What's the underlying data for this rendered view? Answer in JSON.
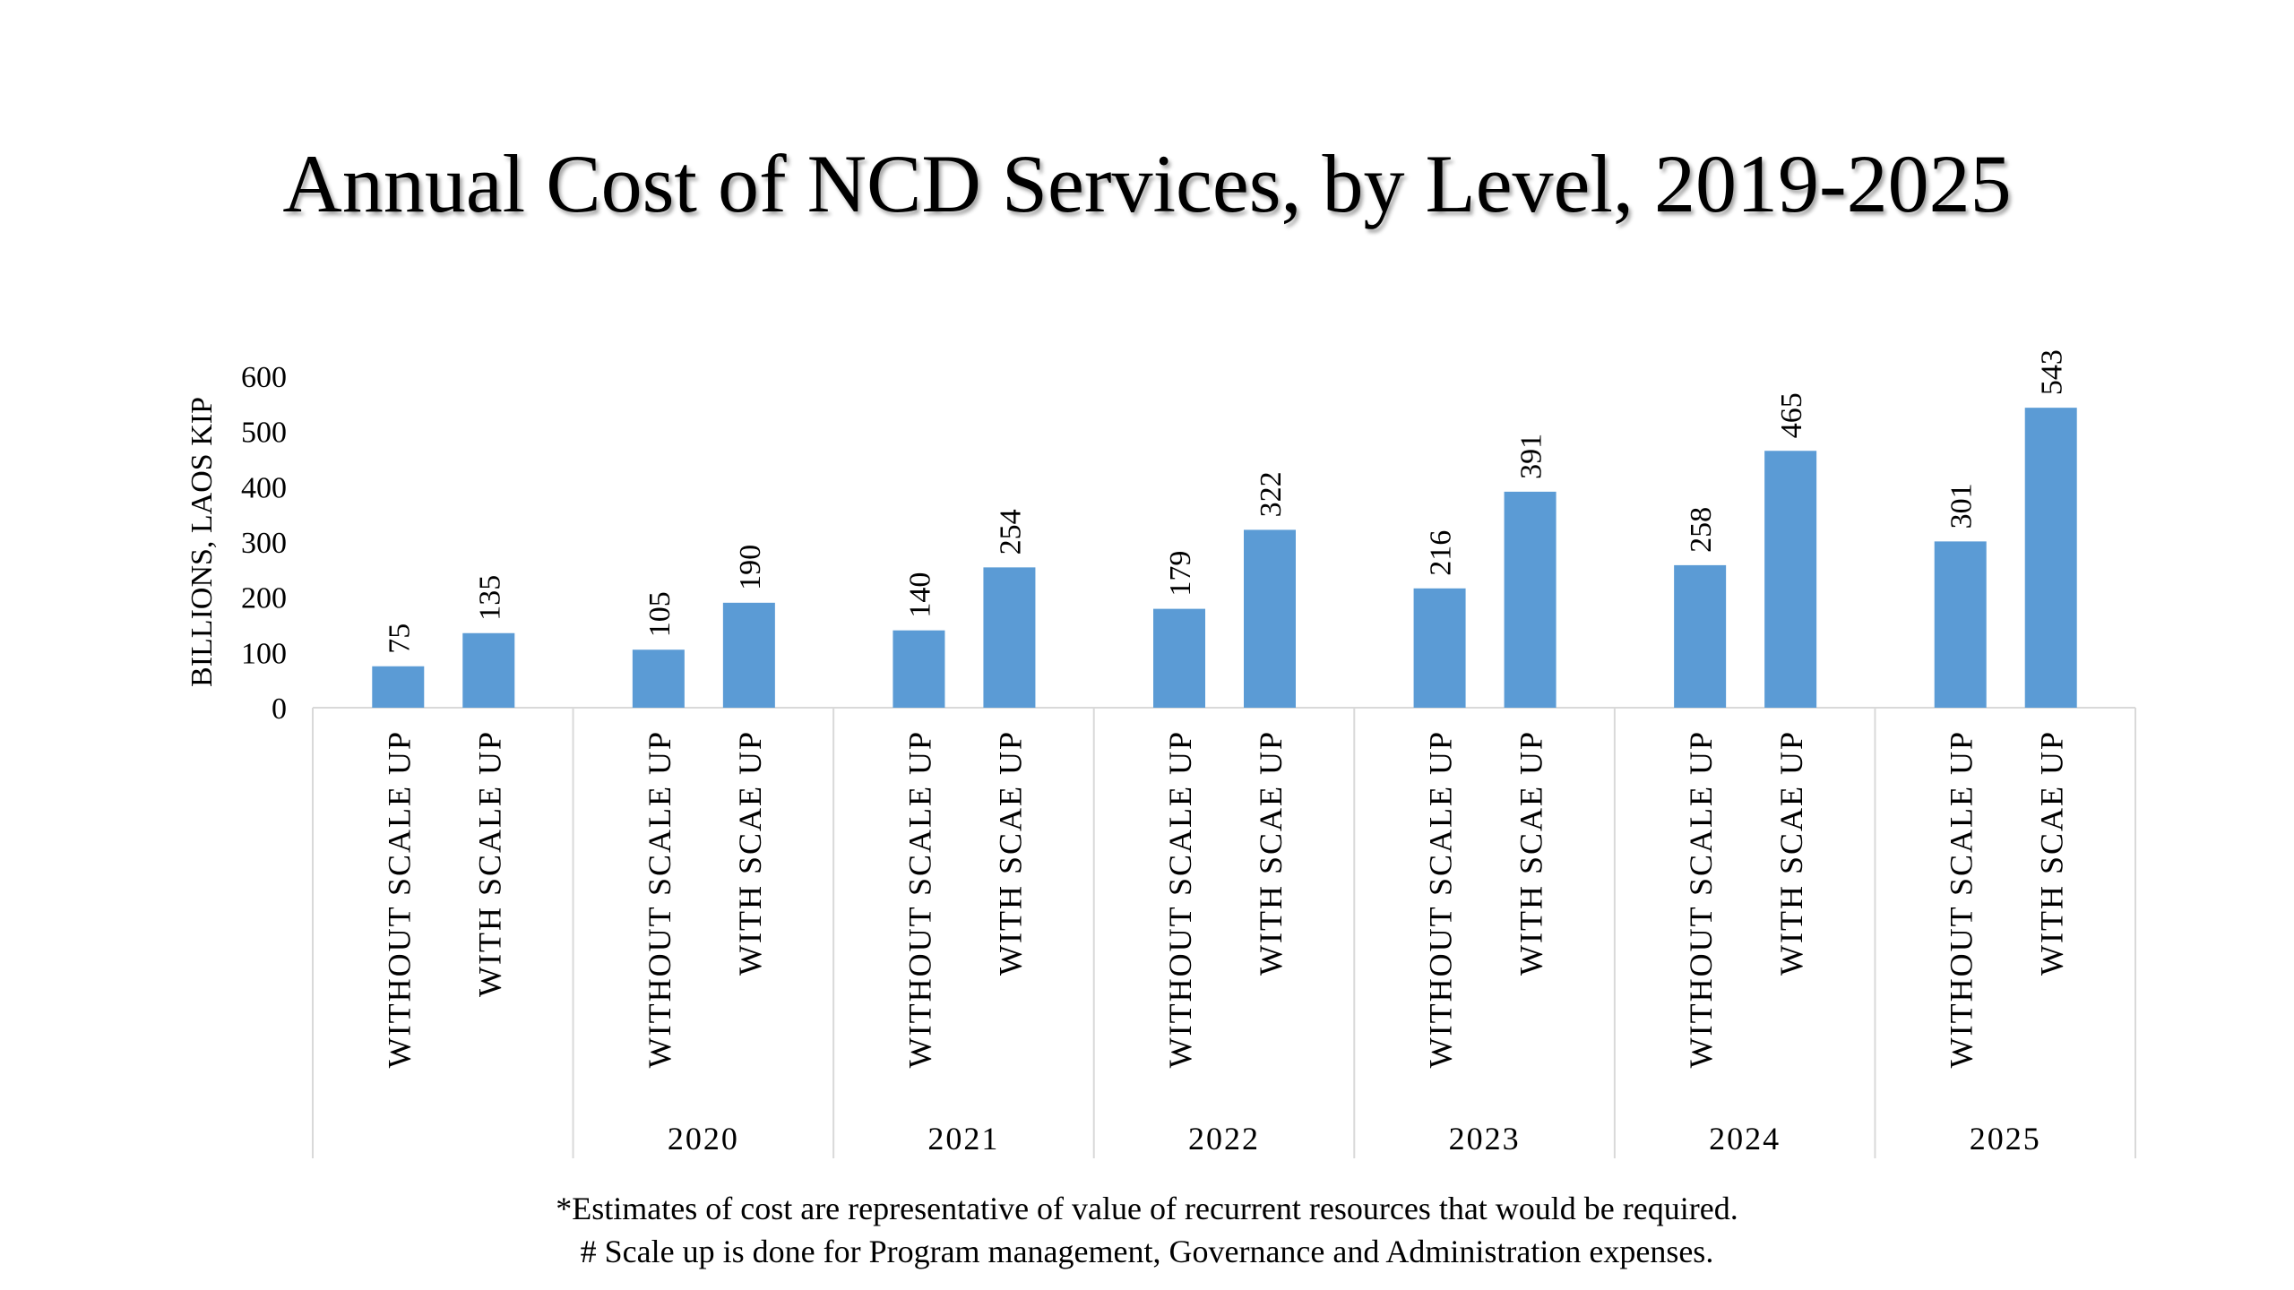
{
  "chart_data": {
    "type": "bar",
    "title": "Annual Cost of NCD Services, by Level, 2019-2025",
    "ylabel": "BILLIONS, LAOS KIP",
    "ylim": [
      0,
      600
    ],
    "yticks": [
      "0",
      "100",
      "200",
      "300",
      "400",
      "500",
      "600"
    ],
    "groups": [
      {
        "label": "",
        "bars": [
          {
            "label": "WITHOUT SCALE UP",
            "value": 75
          },
          {
            "label": "WITH SCALE UP",
            "value": 135
          }
        ]
      },
      {
        "label": "2020",
        "bars": [
          {
            "label": "WITHOUT SCALE UP",
            "value": 105
          },
          {
            "label": "WITH SCAE UP",
            "value": 190
          }
        ]
      },
      {
        "label": "2021",
        "bars": [
          {
            "label": "WITHOUT SCALE UP",
            "value": 140
          },
          {
            "label": "WITH SCAE UP",
            "value": 254
          }
        ]
      },
      {
        "label": "2022",
        "bars": [
          {
            "label": "WITHOUT SCALE UP",
            "value": 179
          },
          {
            "label": "WITH SCAE UP",
            "value": 322
          }
        ]
      },
      {
        "label": "2023",
        "bars": [
          {
            "label": "WITHOUT SCALE UP",
            "value": 216
          },
          {
            "label": "WITH SCAE UP",
            "value": 391
          }
        ]
      },
      {
        "label": "2024",
        "bars": [
          {
            "label": "WITHOUT SCALE UP",
            "value": 258
          },
          {
            "label": "WITH SCAE UP",
            "value": 465
          }
        ]
      },
      {
        "label": "2025",
        "bars": [
          {
            "label": "WITHOUT SCALE UP",
            "value": 301
          },
          {
            "label": "WITH SCAE UP",
            "value": 543
          }
        ]
      }
    ],
    "bar_color": "#5b9bd5",
    "gridlines": false,
    "legend": "none"
  },
  "footnotes": {
    "line1": "*Estimates of cost are representative of value of recurrent resources that would be required.",
    "line2": "# Scale up is done for Program management, Governance and Administration expenses."
  }
}
